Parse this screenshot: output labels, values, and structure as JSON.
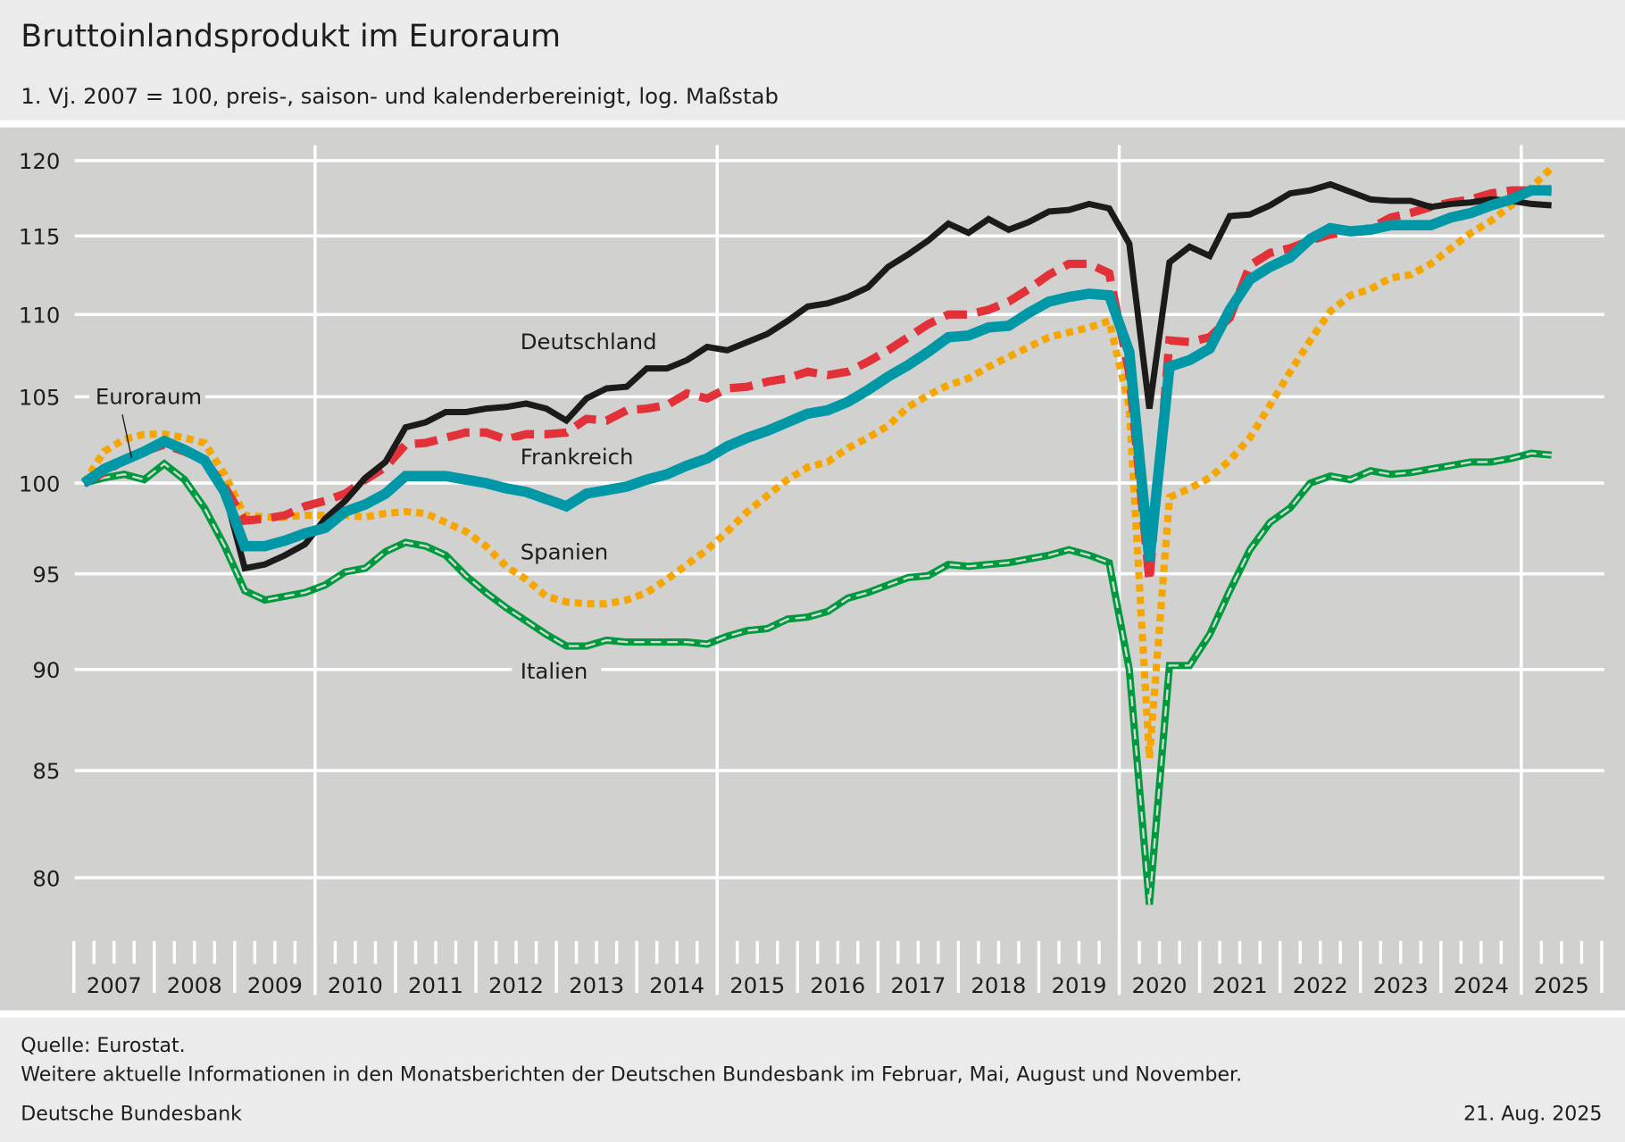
{
  "header": {
    "title": "Bruttoinlandsprodukt im Euroraum",
    "subtitle": "1. Vj. 2007 = 100, preis-, saison- und kalenderbereinigt, log. Maßstab"
  },
  "footer": {
    "source": "Quelle: Eurostat.",
    "note": "Weitere aktuelle Informationen in den Monatsberichten der Deutschen Bundesbank im Februar, Mai, August und November.",
    "publisher": "Deutsche Bundesbank",
    "date": "21. Aug. 2025"
  },
  "chart_data": {
    "type": "line",
    "title": "Bruttoinlandsprodukt im Euroraum",
    "subtitle": "1. Vj. 2007 = 100, preis-, saison- und kalenderbereinigt, log. Maßstab",
    "x_frequency": "quarterly",
    "x_start": "2007 Q1",
    "x_end": "2025 Q2",
    "x_tick_labels": [
      "2007",
      "2008",
      "2009",
      "2010",
      "2011",
      "2012",
      "2013",
      "2014",
      "2015",
      "2016",
      "2017",
      "2018",
      "2019",
      "2020",
      "2021",
      "2022",
      "2023",
      "2024",
      "2025"
    ],
    "y_scale": "log",
    "ylim": [
      78.5,
      121
    ],
    "y_ticks": [
      80,
      85,
      90,
      95,
      100,
      105,
      110,
      115,
      120
    ],
    "grid": true,
    "series": [
      {
        "name": "Spanien",
        "color": "#f7a600",
        "style": "dotted",
        "values": [
          100,
          101.8,
          102.5,
          102.8,
          102.8,
          102.6,
          102.3,
          100.5,
          98.2,
          98.1,
          98.1,
          98.2,
          98.2,
          98.2,
          98.1,
          98.3,
          98.4,
          98.3,
          97.8,
          97.3,
          96.5,
          95.4,
          94.7,
          93.8,
          93.5,
          93.4,
          93.4,
          93.6,
          94.0,
          94.7,
          95.5,
          96.3,
          97.3,
          98.4,
          99.3,
          100.2,
          100.9,
          101.2,
          102.0,
          102.6,
          103.3,
          104.4,
          105.1,
          105.7,
          106.1,
          106.8,
          107.4,
          108.0,
          108.6,
          108.9,
          109.2,
          109.6,
          104.4,
          85.6,
          99.2,
          99.7,
          100.3,
          101.3,
          102.6,
          104.5,
          106.5,
          108.4,
          110.2,
          111.2,
          111.6,
          112.3,
          112.5,
          113.2,
          114.2,
          115.2,
          116.0,
          117.0,
          118.2,
          119.5
        ]
      },
      {
        "name": "Italien",
        "color": "#009a3e",
        "style": "double",
        "values": [
          100,
          100.3,
          100.5,
          100.2,
          101.1,
          100.2,
          98.6,
          96.5,
          94.1,
          93.6,
          93.8,
          94.0,
          94.4,
          95.1,
          95.3,
          96.2,
          96.7,
          96.5,
          96.0,
          94.9,
          94.0,
          93.2,
          92.5,
          91.8,
          91.2,
          91.2,
          91.5,
          91.4,
          91.4,
          91.4,
          91.4,
          91.3,
          91.7,
          92.0,
          92.1,
          92.6,
          92.7,
          93.0,
          93.7,
          94.0,
          94.4,
          94.8,
          94.9,
          95.5,
          95.4,
          95.5,
          95.6,
          95.8,
          96.0,
          96.3,
          96.0,
          95.6,
          90.0,
          78.8,
          90.2,
          90.2,
          91.8,
          94.1,
          96.3,
          97.8,
          98.6,
          100.0,
          100.4,
          100.2,
          100.7,
          100.5,
          100.6,
          100.8,
          101.0,
          101.2,
          101.2,
          101.4,
          101.7,
          101.6
        ]
      },
      {
        "name": "Frankreich",
        "color": "#e3313a",
        "style": "dashed",
        "values": [
          100,
          100.6,
          101.3,
          101.8,
          102.2,
          101.8,
          101.3,
          99.8,
          97.9,
          98.0,
          98.2,
          98.7,
          99.0,
          99.4,
          100.2,
          100.9,
          102.2,
          102.3,
          102.6,
          102.9,
          102.9,
          102.5,
          102.8,
          102.8,
          102.9,
          103.7,
          103.6,
          104.2,
          104.3,
          104.5,
          105.2,
          104.9,
          105.5,
          105.6,
          105.9,
          106.1,
          106.5,
          106.3,
          106.5,
          107.1,
          107.8,
          108.6,
          109.4,
          110.0,
          110.0,
          110.3,
          110.8,
          111.6,
          112.5,
          113.2,
          113.2,
          112.6,
          106.4,
          94.6,
          108.4,
          108.3,
          108.6,
          109.8,
          113.1,
          113.9,
          114.2,
          114.7,
          115.1,
          115.3,
          115.5,
          116.2,
          116.5,
          116.9,
          117.2,
          117.4,
          117.8,
          118.0,
          118.0,
          117.9
        ]
      },
      {
        "name": "Deutschland",
        "color": "#1d1a1a",
        "style": "solid",
        "values": [
          100,
          100.7,
          101.2,
          101.8,
          102.3,
          101.8,
          101.2,
          99.5,
          95.3,
          95.5,
          96.0,
          96.6,
          98.0,
          99.0,
          100.3,
          101.2,
          103.2,
          103.5,
          104.1,
          104.1,
          104.3,
          104.4,
          104.6,
          104.3,
          103.6,
          104.9,
          105.5,
          105.6,
          106.7,
          106.7,
          107.2,
          108.0,
          107.8,
          108.3,
          108.8,
          109.6,
          110.5,
          110.7,
          111.1,
          111.7,
          113.0,
          113.8,
          114.7,
          115.8,
          115.2,
          116.1,
          115.4,
          115.9,
          116.6,
          116.7,
          117.1,
          116.8,
          114.5,
          104.3,
          113.3,
          114.3,
          113.7,
          116.3,
          116.4,
          117.0,
          117.8,
          118.0,
          118.4,
          117.9,
          117.4,
          117.3,
          117.3,
          116.9,
          117.1,
          117.2,
          117.4,
          117.3,
          117.1,
          117.0
        ]
      },
      {
        "name": "Euroraum",
        "color": "#0097a7",
        "style": "thick",
        "values": [
          100,
          100.8,
          101.3,
          101.8,
          102.4,
          101.9,
          101.3,
          99.5,
          96.5,
          96.5,
          96.8,
          97.2,
          97.5,
          98.4,
          98.8,
          99.4,
          100.4,
          100.4,
          100.4,
          100.2,
          100.0,
          99.7,
          99.5,
          99.1,
          98.7,
          99.4,
          99.6,
          99.8,
          100.2,
          100.5,
          101.0,
          101.4,
          102.1,
          102.6,
          103.0,
          103.5,
          104.0,
          104.2,
          104.7,
          105.4,
          106.2,
          106.9,
          107.7,
          108.6,
          108.7,
          109.2,
          109.3,
          110.1,
          110.8,
          111.1,
          111.3,
          111.2,
          107.7,
          95.7,
          106.8,
          107.2,
          107.9,
          110.3,
          112.2,
          113.0,
          113.6,
          114.8,
          115.5,
          115.3,
          115.4,
          115.7,
          115.7,
          115.7,
          116.2,
          116.5,
          117.0,
          117.4,
          118.0,
          118.0
        ]
      }
    ]
  }
}
